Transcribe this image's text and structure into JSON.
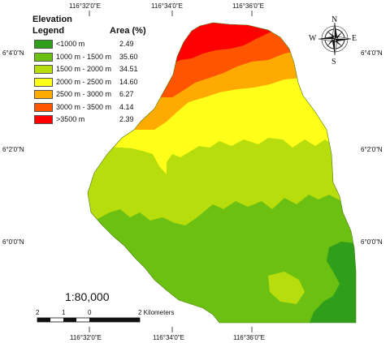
{
  "map": {
    "title": "Elevation",
    "legend_title": "Legend",
    "area_header": "Area (%)",
    "classes": [
      {
        "name": "<1000 m",
        "area": "2.49",
        "color": "#2f9e1b"
      },
      {
        "name": "1000 m - 1500 m",
        "area": "35.60",
        "color": "#6cc011"
      },
      {
        "name": "1500 m - 2000 m",
        "area": "34.51",
        "color": "#b8dd0c"
      },
      {
        "name": "2000 m - 2500 m",
        "area": "14.60",
        "color": "#ffff1a"
      },
      {
        "name": "2500 m - 3000 m",
        "area": "6.27",
        "color": "#ffaa00"
      },
      {
        "name": "3000 m - 3500 m",
        "area": "4.14",
        "color": "#ff5500"
      },
      {
        "name": ">3500 m",
        "area": "2.39",
        "color": "#ff0000"
      }
    ],
    "top_longitudes": [
      "116°32'0\"E",
      "116°34'0\"E",
      "116°36'0\"E"
    ],
    "bottom_longitudes": [
      "116°32'0\"E",
      "116°34'0\"E",
      "116°36'0\"E"
    ],
    "left_latitudes": [
      "6°4'0\"N",
      "6°2'0\"N",
      "6°0'0\"N"
    ],
    "right_latitudes": [
      "6°4'0\"N",
      "6°2'0\"N",
      "6°0'0\"N"
    ],
    "scale_ratio": "1:80,000",
    "scale_bar_ticks": [
      "2",
      "1",
      "0",
      "2 Kilometers"
    ],
    "compass": {
      "n": "N",
      "s": "S",
      "e": "E",
      "w": "W"
    }
  }
}
